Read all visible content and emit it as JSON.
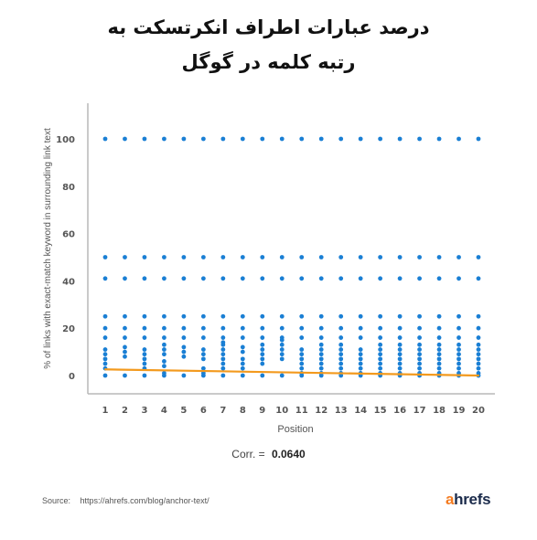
{
  "header": {
    "title_line1": "درصد عبارات اطراف انکرتسکت به",
    "title_line2": "رتبه کلمه در گوگل"
  },
  "footer": {
    "corr_label": "Corr. =",
    "corr_value": "0.0640",
    "source_label": "Source:",
    "source_url": "https://ahrefs.com/blog/anchor-text/",
    "logo_a": "a",
    "logo_rest": "hrefs"
  },
  "colors": {
    "points": "#1a7fd4",
    "trend": "#f39a1e",
    "axis": "#b8b8b8",
    "logo_accent": "#f47b20"
  },
  "chart_data": {
    "type": "scatter",
    "xlabel": "Position",
    "ylabel": "% of links with exact-match keyword in surrounding link text",
    "xlim": [
      1,
      20
    ],
    "ylim": [
      0,
      110
    ],
    "xticks": [
      1,
      2,
      3,
      4,
      5,
      6,
      7,
      8,
      9,
      10,
      11,
      12,
      13,
      14,
      15,
      16,
      17,
      18,
      19,
      20
    ],
    "yticks": [
      0,
      20,
      40,
      60,
      80,
      100
    ],
    "grid": false,
    "series": [
      {
        "points": [
          [
            1,
            0
          ],
          [
            1,
            3
          ],
          [
            1,
            5
          ],
          [
            1,
            7
          ],
          [
            1,
            9
          ],
          [
            1,
            11
          ],
          [
            1,
            16
          ],
          [
            1,
            20
          ],
          [
            1,
            25
          ],
          [
            1,
            41
          ],
          [
            1,
            50
          ],
          [
            1,
            100
          ],
          [
            2,
            0
          ],
          [
            2,
            8
          ],
          [
            2,
            10
          ],
          [
            2,
            12
          ],
          [
            2,
            16
          ],
          [
            2,
            20
          ],
          [
            2,
            25
          ],
          [
            2,
            41
          ],
          [
            2,
            50
          ],
          [
            2,
            100
          ],
          [
            3,
            0
          ],
          [
            3,
            3
          ],
          [
            3,
            5
          ],
          [
            3,
            7
          ],
          [
            3,
            9
          ],
          [
            3,
            11
          ],
          [
            3,
            16
          ],
          [
            3,
            20
          ],
          [
            3,
            25
          ],
          [
            3,
            41
          ],
          [
            3,
            50
          ],
          [
            3,
            100
          ],
          [
            4,
            0
          ],
          [
            4,
            1
          ],
          [
            4,
            4
          ],
          [
            4,
            6
          ],
          [
            4,
            9
          ],
          [
            4,
            11
          ],
          [
            4,
            13
          ],
          [
            4,
            16
          ],
          [
            4,
            20
          ],
          [
            4,
            25
          ],
          [
            4,
            41
          ],
          [
            4,
            50
          ],
          [
            4,
            100
          ],
          [
            5,
            0
          ],
          [
            5,
            8
          ],
          [
            5,
            10
          ],
          [
            5,
            12
          ],
          [
            5,
            16
          ],
          [
            5,
            20
          ],
          [
            5,
            25
          ],
          [
            5,
            41
          ],
          [
            5,
            50
          ],
          [
            5,
            100
          ],
          [
            6,
            0
          ],
          [
            6,
            1
          ],
          [
            6,
            3
          ],
          [
            6,
            7
          ],
          [
            6,
            9
          ],
          [
            6,
            11
          ],
          [
            6,
            16
          ],
          [
            6,
            20
          ],
          [
            6,
            25
          ],
          [
            6,
            41
          ],
          [
            6,
            50
          ],
          [
            6,
            100
          ],
          [
            7,
            0
          ],
          [
            7,
            3
          ],
          [
            7,
            5
          ],
          [
            7,
            7
          ],
          [
            7,
            9
          ],
          [
            7,
            11
          ],
          [
            7,
            13
          ],
          [
            7,
            14
          ],
          [
            7,
            16
          ],
          [
            7,
            20
          ],
          [
            7,
            25
          ],
          [
            7,
            41
          ],
          [
            7,
            50
          ],
          [
            7,
            100
          ],
          [
            8,
            0
          ],
          [
            8,
            3
          ],
          [
            8,
            5
          ],
          [
            8,
            7
          ],
          [
            8,
            10
          ],
          [
            8,
            12
          ],
          [
            8,
            16
          ],
          [
            8,
            20
          ],
          [
            8,
            25
          ],
          [
            8,
            41
          ],
          [
            8,
            50
          ],
          [
            8,
            100
          ],
          [
            9,
            0
          ],
          [
            9,
            5
          ],
          [
            9,
            7
          ],
          [
            9,
            9
          ],
          [
            9,
            11
          ],
          [
            9,
            13
          ],
          [
            9,
            16
          ],
          [
            9,
            20
          ],
          [
            9,
            25
          ],
          [
            9,
            41
          ],
          [
            9,
            50
          ],
          [
            9,
            100
          ],
          [
            10,
            0
          ],
          [
            10,
            7
          ],
          [
            10,
            9
          ],
          [
            10,
            11
          ],
          [
            10,
            13
          ],
          [
            10,
            15
          ],
          [
            10,
            16
          ],
          [
            10,
            20
          ],
          [
            10,
            25
          ],
          [
            10,
            41
          ],
          [
            10,
            50
          ],
          [
            10,
            100
          ],
          [
            11,
            0
          ],
          [
            11,
            1
          ],
          [
            11,
            3
          ],
          [
            11,
            5
          ],
          [
            11,
            7
          ],
          [
            11,
            9
          ],
          [
            11,
            11
          ],
          [
            11,
            16
          ],
          [
            11,
            20
          ],
          [
            11,
            25
          ],
          [
            11,
            41
          ],
          [
            11,
            50
          ],
          [
            11,
            100
          ],
          [
            12,
            0
          ],
          [
            12,
            1
          ],
          [
            12,
            3
          ],
          [
            12,
            5
          ],
          [
            12,
            7
          ],
          [
            12,
            9
          ],
          [
            12,
            11
          ],
          [
            12,
            13
          ],
          [
            12,
            16
          ],
          [
            12,
            20
          ],
          [
            12,
            25
          ],
          [
            12,
            41
          ],
          [
            12,
            50
          ],
          [
            12,
            100
          ],
          [
            13,
            0
          ],
          [
            13,
            1
          ],
          [
            13,
            3
          ],
          [
            13,
            5
          ],
          [
            13,
            7
          ],
          [
            13,
            9
          ],
          [
            13,
            11
          ],
          [
            13,
            13
          ],
          [
            13,
            16
          ],
          [
            13,
            20
          ],
          [
            13,
            25
          ],
          [
            13,
            41
          ],
          [
            13,
            50
          ],
          [
            13,
            100
          ],
          [
            14,
            0
          ],
          [
            14,
            1
          ],
          [
            14,
            3
          ],
          [
            14,
            5
          ],
          [
            14,
            7
          ],
          [
            14,
            9
          ],
          [
            14,
            11
          ],
          [
            14,
            16
          ],
          [
            14,
            20
          ],
          [
            14,
            25
          ],
          [
            14,
            41
          ],
          [
            14,
            50
          ],
          [
            14,
            100
          ],
          [
            15,
            0
          ],
          [
            15,
            1
          ],
          [
            15,
            3
          ],
          [
            15,
            5
          ],
          [
            15,
            7
          ],
          [
            15,
            9
          ],
          [
            15,
            11
          ],
          [
            15,
            13
          ],
          [
            15,
            16
          ],
          [
            15,
            20
          ],
          [
            15,
            25
          ],
          [
            15,
            41
          ],
          [
            15,
            50
          ],
          [
            15,
            100
          ],
          [
            16,
            0
          ],
          [
            16,
            1
          ],
          [
            16,
            3
          ],
          [
            16,
            5
          ],
          [
            16,
            7
          ],
          [
            16,
            9
          ],
          [
            16,
            11
          ],
          [
            16,
            13
          ],
          [
            16,
            16
          ],
          [
            16,
            20
          ],
          [
            16,
            25
          ],
          [
            16,
            41
          ],
          [
            16,
            50
          ],
          [
            16,
            100
          ],
          [
            17,
            0
          ],
          [
            17,
            1
          ],
          [
            17,
            3
          ],
          [
            17,
            5
          ],
          [
            17,
            7
          ],
          [
            17,
            9
          ],
          [
            17,
            11
          ],
          [
            17,
            13
          ],
          [
            17,
            16
          ],
          [
            17,
            20
          ],
          [
            17,
            25
          ],
          [
            17,
            41
          ],
          [
            17,
            50
          ],
          [
            17,
            100
          ],
          [
            18,
            0
          ],
          [
            18,
            1
          ],
          [
            18,
            3
          ],
          [
            18,
            5
          ],
          [
            18,
            7
          ],
          [
            18,
            9
          ],
          [
            18,
            11
          ],
          [
            18,
            13
          ],
          [
            18,
            16
          ],
          [
            18,
            20
          ],
          [
            18,
            25
          ],
          [
            18,
            41
          ],
          [
            18,
            50
          ],
          [
            18,
            100
          ],
          [
            19,
            0
          ],
          [
            19,
            1
          ],
          [
            19,
            3
          ],
          [
            19,
            5
          ],
          [
            19,
            7
          ],
          [
            19,
            9
          ],
          [
            19,
            11
          ],
          [
            19,
            13
          ],
          [
            19,
            16
          ],
          [
            19,
            20
          ],
          [
            19,
            25
          ],
          [
            19,
            41
          ],
          [
            19,
            50
          ],
          [
            19,
            100
          ],
          [
            20,
            0
          ],
          [
            20,
            1
          ],
          [
            20,
            3
          ],
          [
            20,
            5
          ],
          [
            20,
            7
          ],
          [
            20,
            9
          ],
          [
            20,
            11
          ],
          [
            20,
            13
          ],
          [
            20,
            16
          ],
          [
            20,
            20
          ],
          [
            20,
            25
          ],
          [
            20,
            41
          ],
          [
            20,
            50
          ],
          [
            20,
            100
          ]
        ]
      }
    ],
    "trendline": {
      "start": [
        1,
        2.6
      ],
      "end": [
        20,
        0
      ]
    }
  }
}
